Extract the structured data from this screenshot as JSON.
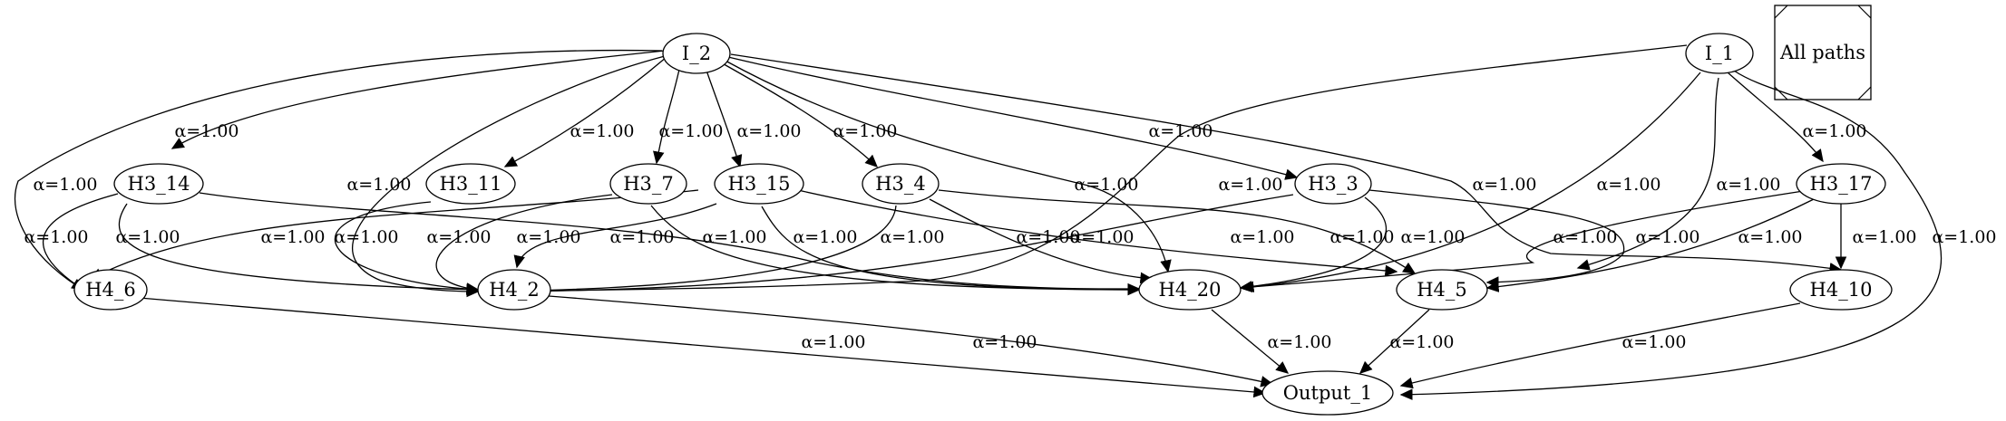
{
  "diagram": {
    "legend_label": "All paths",
    "nodes": {
      "I_2": "I_2",
      "I_1": "I_1",
      "H3_14": "H3_14",
      "H3_11": "H3_11",
      "H3_7": "H3_7",
      "H3_15": "H3_15",
      "H3_4": "H3_4",
      "H3_3": "H3_3",
      "H3_17": "H3_17",
      "H4_6": "H4_6",
      "H4_2": "H4_2",
      "H4_20": "H4_20",
      "H4_5": "H4_5",
      "H4_10": "H4_10",
      "Output_1": "Output_1"
    },
    "edge_label": "α=1.00"
  }
}
